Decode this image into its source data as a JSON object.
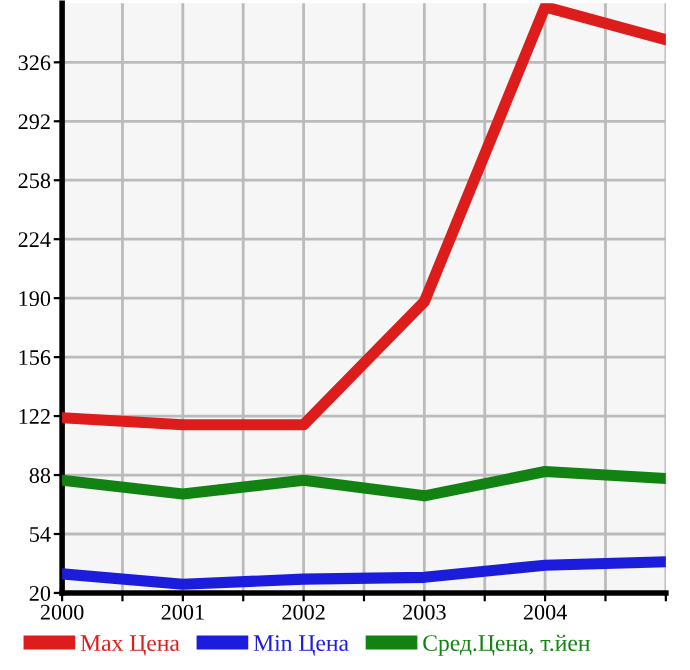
{
  "chart_data": {
    "type": "line",
    "x": [
      2000,
      2001,
      2002,
      2003,
      2004,
      2005
    ],
    "series": [
      {
        "name": "Max Цена",
        "color": "#dd1c1c",
        "values": [
          121,
          117,
          117,
          188,
          358,
          339
        ]
      },
      {
        "name": "Min Цена",
        "color": "#1c1cdd",
        "values": [
          31,
          25,
          28,
          29,
          36,
          38
        ]
      },
      {
        "name": "Сред.Цена, т.йен",
        "color": "#128212",
        "values": [
          85,
          77,
          85,
          76,
          90,
          86
        ]
      }
    ],
    "xlim": [
      2000,
      2005
    ],
    "ylim": [
      20,
      360
    ],
    "xticks": [
      2000,
      {
        "value": 2000.5,
        "label": null
      },
      2001,
      {
        "value": 2001.5,
        "label": null
      },
      2002,
      {
        "value": 2002.5,
        "label": null
      },
      2003,
      {
        "value": 2003.5,
        "label": null
      },
      2004,
      {
        "value": 2004.5,
        "label": null
      },
      {
        "value": 2005,
        "label": null
      }
    ],
    "yticks": [
      20,
      54,
      88,
      122,
      156,
      190,
      224,
      258,
      292,
      326
    ],
    "grid": true,
    "legend": "bottom",
    "marker": "none",
    "line_style": "solid"
  }
}
